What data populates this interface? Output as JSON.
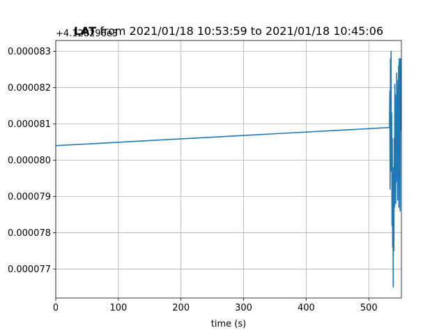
{
  "chart_data": {
    "type": "line",
    "title_prefix": "LAT",
    "title_rest": " from 2021/01/18 10:53:59 to 2021/01/18 10:45:06",
    "xlabel": "time (s)",
    "ylabel": "",
    "y_offset_label": "+4.128296e3",
    "xlim": [
      0,
      552
    ],
    "ylim": [
      7.62e-05,
      8.33e-05
    ],
    "grid": true,
    "line_color": "#1f77b4",
    "x_ticks": [
      0,
      100,
      200,
      300,
      400,
      500
    ],
    "x_tick_labels": [
      "0",
      "100",
      "200",
      "300",
      "400",
      "500"
    ],
    "y_ticks": [
      7.7e-05,
      7.8e-05,
      7.9e-05,
      8e-05,
      8.1e-05,
      8.2e-05,
      8.3e-05
    ],
    "y_tick_labels": [
      "0.000077",
      "0.000078",
      "0.000079",
      "0.000080",
      "0.000081",
      "0.000082",
      "0.000083"
    ],
    "series": [
      {
        "x": [
          0,
          533,
          533.5,
          534,
          534.5,
          535,
          535.5,
          536,
          536.5,
          537,
          537.5,
          538,
          538.5,
          539,
          539.5,
          540,
          540.5,
          541,
          541.5,
          542,
          542.5,
          543,
          543.5,
          544,
          544.5,
          545,
          545.5,
          546,
          546.5,
          547,
          547.5,
          548,
          548.5,
          549,
          549.5,
          550,
          550.5,
          551
        ],
        "y": [
          8.04e-05,
          8.09e-05,
          8.19e-05,
          7.92e-05,
          8.28e-05,
          7.97e-05,
          8.3e-05,
          8.01e-05,
          8.13e-05,
          7.82e-05,
          8.06e-05,
          7.76e-05,
          7.96e-05,
          7.65e-05,
          7.98e-05,
          7.75e-05,
          8.06e-05,
          7.87e-05,
          8.21e-05,
          7.99e-05,
          8.18e-05,
          7.88e-05,
          8.11e-05,
          7.94e-05,
          8.24e-05,
          8.01e-05,
          8.15e-05,
          7.89e-05,
          8.22e-05,
          7.99e-05,
          8.26e-05,
          7.87e-05,
          8.28e-05,
          7.97e-05,
          8.27e-05,
          7.86e-05,
          8.28e-05,
          8.08e-05
        ]
      }
    ]
  }
}
